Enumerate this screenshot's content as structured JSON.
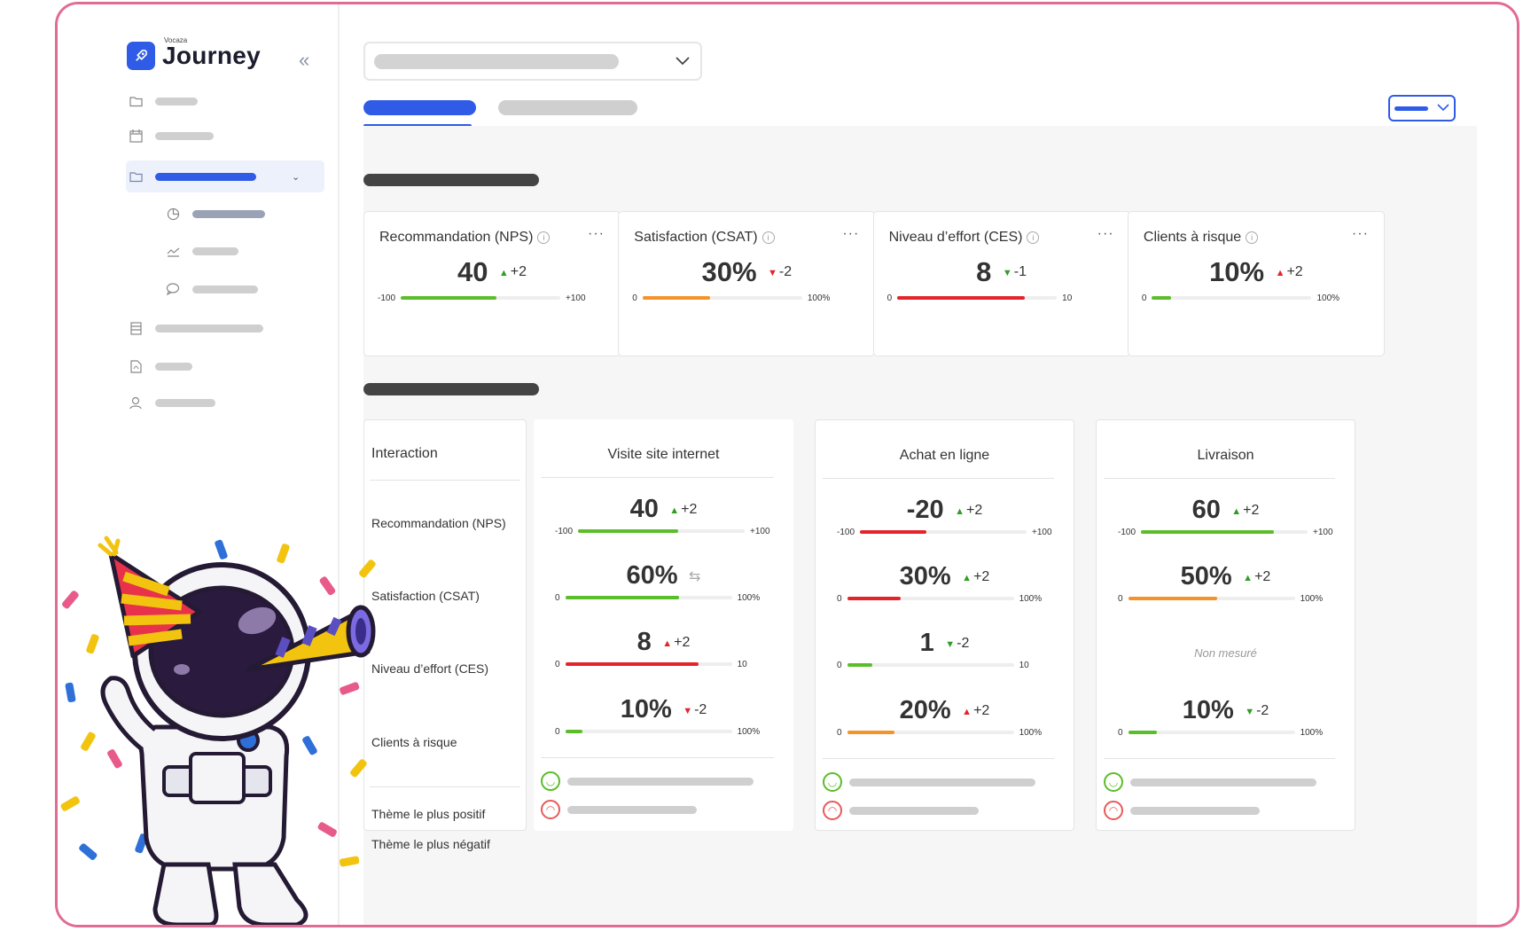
{
  "brand": {
    "small": "Vocaza",
    "name": "Journey"
  },
  "kpis": [
    {
      "title": "Recommandation (NPS)",
      "value": "40",
      "delta": "+2",
      "trend": "up",
      "min": "-100",
      "max": "+100",
      "fill": 0.6,
      "color": "#5bbd2a"
    },
    {
      "title": "Satisfaction (CSAT)",
      "value": "30%",
      "delta": "-2",
      "trend": "down",
      "min": "0",
      "max": "100%",
      "fill": 0.42,
      "color": "#f5922a"
    },
    {
      "title": "Niveau d’effort (CES)",
      "value": "8",
      "delta": "-1",
      "trend": "down-green",
      "min": "0",
      "max": "10",
      "fill": 0.8,
      "color": "#e3242b"
    },
    {
      "title": "Clients à risque",
      "value": "10%",
      "delta": "+2",
      "trend": "up-red",
      "min": "0",
      "max": "100%",
      "fill": 0.12,
      "color": "#5bbd2a"
    }
  ],
  "table": {
    "header": "Interaction",
    "rows": [
      "Recommandation (NPS)",
      "Satisfaction (CSAT)",
      "Niveau d’effort (CES)",
      "Clients à risque"
    ],
    "theme_positive": "Thème le plus positif",
    "theme_negative": "Thème le plus négatif",
    "not_measured": "Non mesuré",
    "columns": [
      {
        "title": "Visite site internet",
        "metrics": [
          {
            "value": "40",
            "delta": "+2",
            "trend": "up",
            "min": "-100",
            "max": "+100",
            "fill": 0.6,
            "color": "#5bbd2a"
          },
          {
            "value": "60%",
            "delta": "⇆",
            "trend": "flat",
            "min": "0",
            "max": "100%",
            "fill": 0.68,
            "color": "#5bbd2a"
          },
          {
            "value": "8",
            "delta": "+2",
            "trend": "up-red",
            "min": "0",
            "max": "10",
            "fill": 0.8,
            "color": "#e3242b"
          },
          {
            "value": "10%",
            "delta": "-2",
            "trend": "down",
            "min": "0",
            "max": "100%",
            "fill": 0.1,
            "color": "#5bbd2a"
          }
        ]
      },
      {
        "title": "Achat en ligne",
        "metrics": [
          {
            "value": "-20",
            "delta": "+2",
            "trend": "up",
            "min": "-100",
            "max": "+100",
            "fill": 0.4,
            "color": "#e3242b"
          },
          {
            "value": "30%",
            "delta": "+2",
            "trend": "up",
            "min": "0",
            "max": "100%",
            "fill": 0.32,
            "color": "#e3242b"
          },
          {
            "value": "1",
            "delta": "-2",
            "trend": "down-green",
            "min": "0",
            "max": "10",
            "fill": 0.15,
            "color": "#5bbd2a"
          },
          {
            "value": "20%",
            "delta": "+2",
            "trend": "up-red",
            "min": "0",
            "max": "100%",
            "fill": 0.28,
            "color": "#f5922a"
          }
        ]
      },
      {
        "title": "Livraison",
        "metrics": [
          {
            "value": "60",
            "delta": "+2",
            "trend": "up",
            "min": "-100",
            "max": "+100",
            "fill": 0.8,
            "color": "#5bbd2a"
          },
          {
            "value": "50%",
            "delta": "+2",
            "trend": "up",
            "min": "0",
            "max": "100%",
            "fill": 0.53,
            "color": "#f5922a"
          },
          null,
          {
            "value": "10%",
            "delta": "-2",
            "trend": "down-green",
            "min": "0",
            "max": "100%",
            "fill": 0.17,
            "color": "#5bbd2a"
          }
        ]
      }
    ]
  },
  "icons": {
    "sidebar": [
      "folder-icon",
      "calendar-icon",
      "folder-icon",
      "pie-chart-icon",
      "line-chart-icon",
      "chat-icon",
      "table-icon",
      "pdf-icon",
      "user-icon"
    ],
    "collapse": "double-chevron-left-icon"
  }
}
